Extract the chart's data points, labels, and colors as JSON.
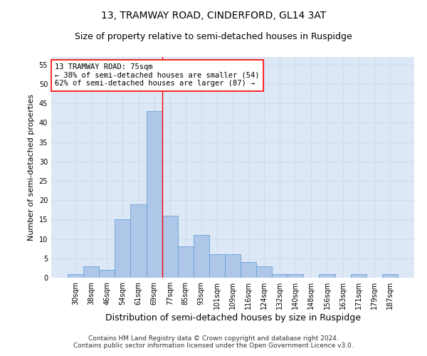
{
  "title": "13, TRAMWAY ROAD, CINDERFORD, GL14 3AT",
  "subtitle": "Size of property relative to semi-detached houses in Ruspidge",
  "xlabel": "Distribution of semi-detached houses by size in Ruspidge",
  "ylabel": "Number of semi-detached properties",
  "bin_labels": [
    "30sqm",
    "38sqm",
    "46sqm",
    "54sqm",
    "61sqm",
    "69sqm",
    "77sqm",
    "85sqm",
    "93sqm",
    "101sqm",
    "109sqm",
    "116sqm",
    "124sqm",
    "132sqm",
    "140sqm",
    "148sqm",
    "156sqm",
    "163sqm",
    "171sqm",
    "179sqm",
    "187sqm"
  ],
  "bar_heights": [
    1,
    3,
    2,
    15,
    19,
    43,
    16,
    8,
    11,
    6,
    6,
    4,
    3,
    1,
    1,
    0,
    1,
    0,
    1,
    0,
    1
  ],
  "bar_color": "#aec6e8",
  "bar_edge_color": "#5b9bd5",
  "vline_x_index": 5.5,
  "vline_color": "red",
  "annotation_text": "13 TRAMWAY ROAD: 75sqm\n← 38% of semi-detached houses are smaller (54)\n62% of semi-detached houses are larger (87) →",
  "annotation_box_color": "white",
  "annotation_box_edge_color": "red",
  "ylim": [
    0,
    57
  ],
  "yticks": [
    0,
    5,
    10,
    15,
    20,
    25,
    30,
    35,
    40,
    45,
    50,
    55
  ],
  "grid_color": "#d0dce8",
  "background_color": "#dce8f5",
  "footer_text": "Contains HM Land Registry data © Crown copyright and database right 2024.\nContains public sector information licensed under the Open Government Licence v3.0.",
  "title_fontsize": 10,
  "subtitle_fontsize": 9,
  "xlabel_fontsize": 9,
  "ylabel_fontsize": 8,
  "tick_fontsize": 7,
  "annotation_fontsize": 7.5,
  "footer_fontsize": 6.5
}
